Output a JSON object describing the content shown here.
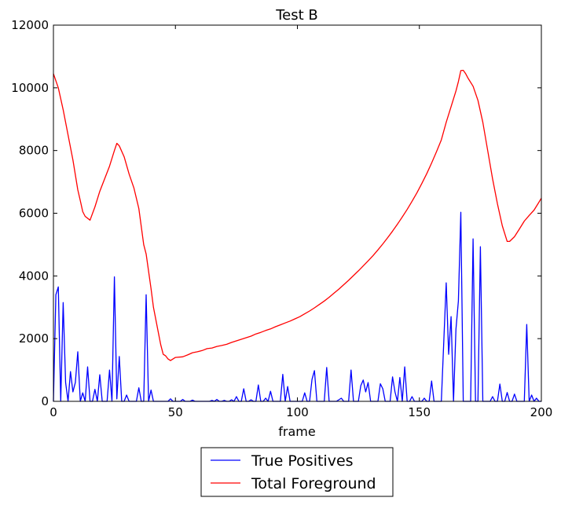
{
  "chart_data": {
    "type": "line",
    "title": "Test B",
    "xlabel": "frame",
    "ylabel": "",
    "xlim": [
      0,
      200
    ],
    "ylim": [
      0,
      12000
    ],
    "xticks": [
      0,
      50,
      100,
      150,
      200
    ],
    "yticks": [
      0,
      2000,
      4000,
      6000,
      8000,
      10000,
      12000
    ],
    "legend_position": "below plot, centered",
    "grid": false,
    "series": [
      {
        "name": "True Positives",
        "color": "#0000ff",
        "points": [
          [
            0,
            0
          ],
          [
            1,
            3400
          ],
          [
            2,
            3650
          ],
          [
            3,
            0
          ],
          [
            4,
            3150
          ],
          [
            5,
            600
          ],
          [
            6,
            0
          ],
          [
            7,
            950
          ],
          [
            8,
            300
          ],
          [
            9,
            600
          ],
          [
            10,
            1580
          ],
          [
            11,
            0
          ],
          [
            12,
            270
          ],
          [
            13,
            0
          ],
          [
            14,
            1100
          ],
          [
            15,
            0
          ],
          [
            16,
            0
          ],
          [
            17,
            380
          ],
          [
            18,
            0
          ],
          [
            19,
            850
          ],
          [
            20,
            0
          ],
          [
            21,
            0
          ],
          [
            22,
            0
          ],
          [
            23,
            1000
          ],
          [
            24,
            0
          ],
          [
            25,
            3970
          ],
          [
            26,
            80
          ],
          [
            27,
            1430
          ],
          [
            28,
            0
          ],
          [
            29,
            0
          ],
          [
            30,
            200
          ],
          [
            31,
            0
          ],
          [
            32,
            0
          ],
          [
            33,
            0
          ],
          [
            34,
            0
          ],
          [
            35,
            430
          ],
          [
            36,
            0
          ],
          [
            37,
            0
          ],
          [
            38,
            3400
          ],
          [
            39,
            0
          ],
          [
            40,
            360
          ],
          [
            41,
            0
          ],
          [
            42,
            0
          ],
          [
            43,
            0
          ],
          [
            44,
            0
          ],
          [
            45,
            0
          ],
          [
            46,
            0
          ],
          [
            47,
            0
          ],
          [
            48,
            80
          ],
          [
            49,
            0
          ],
          [
            50,
            0
          ],
          [
            51,
            0
          ],
          [
            52,
            0
          ],
          [
            53,
            60
          ],
          [
            54,
            0
          ],
          [
            55,
            0
          ],
          [
            56,
            0
          ],
          [
            57,
            40
          ],
          [
            58,
            0
          ],
          [
            59,
            0
          ],
          [
            60,
            0
          ],
          [
            61,
            0
          ],
          [
            62,
            0
          ],
          [
            63,
            0
          ],
          [
            64,
            0
          ],
          [
            65,
            30
          ],
          [
            66,
            0
          ],
          [
            67,
            60
          ],
          [
            68,
            0
          ],
          [
            69,
            0
          ],
          [
            70,
            30
          ],
          [
            71,
            0
          ],
          [
            72,
            0
          ],
          [
            73,
            50
          ],
          [
            74,
            0
          ],
          [
            75,
            150
          ],
          [
            76,
            0
          ],
          [
            77,
            0
          ],
          [
            78,
            400
          ],
          [
            79,
            0
          ],
          [
            80,
            0
          ],
          [
            81,
            50
          ],
          [
            82,
            0
          ],
          [
            83,
            0
          ],
          [
            84,
            520
          ],
          [
            85,
            0
          ],
          [
            86,
            0
          ],
          [
            87,
            100
          ],
          [
            88,
            0
          ],
          [
            89,
            320
          ],
          [
            90,
            0
          ],
          [
            91,
            0
          ],
          [
            92,
            0
          ],
          [
            93,
            0
          ],
          [
            94,
            860
          ],
          [
            95,
            0
          ],
          [
            96,
            470
          ],
          [
            97,
            0
          ],
          [
            98,
            0
          ],
          [
            99,
            0
          ],
          [
            100,
            0
          ],
          [
            101,
            0
          ],
          [
            102,
            0
          ],
          [
            103,
            270
          ],
          [
            104,
            0
          ],
          [
            105,
            0
          ],
          [
            106,
            700
          ],
          [
            107,
            980
          ],
          [
            108,
            0
          ],
          [
            109,
            0
          ],
          [
            110,
            0
          ],
          [
            111,
            0
          ],
          [
            112,
            1080
          ],
          [
            113,
            0
          ],
          [
            114,
            0
          ],
          [
            115,
            0
          ],
          [
            116,
            0
          ],
          [
            117,
            50
          ],
          [
            118,
            100
          ],
          [
            119,
            0
          ],
          [
            120,
            0
          ],
          [
            121,
            0
          ],
          [
            122,
            1000
          ],
          [
            123,
            0
          ],
          [
            124,
            0
          ],
          [
            125,
            0
          ],
          [
            126,
            500
          ],
          [
            127,
            680
          ],
          [
            128,
            300
          ],
          [
            129,
            600
          ],
          [
            130,
            0
          ],
          [
            131,
            0
          ],
          [
            132,
            0
          ],
          [
            133,
            0
          ],
          [
            134,
            560
          ],
          [
            135,
            400
          ],
          [
            136,
            0
          ],
          [
            137,
            0
          ],
          [
            138,
            0
          ],
          [
            139,
            780
          ],
          [
            140,
            300
          ],
          [
            141,
            0
          ],
          [
            142,
            760
          ],
          [
            143,
            0
          ],
          [
            144,
            1100
          ],
          [
            145,
            0
          ],
          [
            146,
            0
          ],
          [
            147,
            150
          ],
          [
            148,
            0
          ],
          [
            149,
            0
          ],
          [
            150,
            0
          ],
          [
            151,
            0
          ],
          [
            152,
            100
          ],
          [
            153,
            0
          ],
          [
            154,
            0
          ],
          [
            155,
            650
          ],
          [
            156,
            0
          ],
          [
            157,
            0
          ],
          [
            158,
            0
          ],
          [
            159,
            0
          ],
          [
            160,
            1900
          ],
          [
            161,
            3780
          ],
          [
            162,
            1500
          ],
          [
            163,
            2700
          ],
          [
            164,
            0
          ],
          [
            165,
            2300
          ],
          [
            166,
            3200
          ],
          [
            167,
            6030
          ],
          [
            168,
            0
          ],
          [
            169,
            0
          ],
          [
            170,
            0
          ],
          [
            171,
            0
          ],
          [
            172,
            5180
          ],
          [
            173,
            0
          ],
          [
            174,
            0
          ],
          [
            175,
            4930
          ],
          [
            176,
            0
          ],
          [
            177,
            0
          ],
          [
            178,
            0
          ],
          [
            179,
            0
          ],
          [
            180,
            150
          ],
          [
            181,
            0
          ],
          [
            182,
            0
          ],
          [
            183,
            550
          ],
          [
            184,
            0
          ],
          [
            185,
            0
          ],
          [
            186,
            280
          ],
          [
            187,
            0
          ],
          [
            188,
            0
          ],
          [
            189,
            230
          ],
          [
            190,
            0
          ],
          [
            191,
            0
          ],
          [
            192,
            0
          ],
          [
            193,
            0
          ],
          [
            194,
            2450
          ],
          [
            195,
            0
          ],
          [
            196,
            200
          ],
          [
            197,
            0
          ],
          [
            198,
            100
          ],
          [
            199,
            0
          ],
          [
            200,
            0
          ]
        ]
      },
      {
        "name": "Total Foreground",
        "color": "#ff0000",
        "points": [
          [
            0,
            10450
          ],
          [
            2,
            10000
          ],
          [
            4,
            9300
          ],
          [
            6,
            8500
          ],
          [
            8,
            7700
          ],
          [
            10,
            6750
          ],
          [
            11,
            6400
          ],
          [
            12,
            6050
          ],
          [
            13,
            5900
          ],
          [
            15,
            5780
          ],
          [
            17,
            6200
          ],
          [
            19,
            6700
          ],
          [
            21,
            7100
          ],
          [
            23,
            7500
          ],
          [
            25,
            8000
          ],
          [
            26,
            8230
          ],
          [
            27,
            8150
          ],
          [
            29,
            7800
          ],
          [
            31,
            7250
          ],
          [
            33,
            6800
          ],
          [
            35,
            6150
          ],
          [
            37,
            5000
          ],
          [
            38,
            4700
          ],
          [
            40,
            3600
          ],
          [
            41,
            3000
          ],
          [
            43,
            2200
          ],
          [
            44,
            1800
          ],
          [
            45,
            1500
          ],
          [
            46,
            1450
          ],
          [
            47,
            1350
          ],
          [
            48,
            1300
          ],
          [
            50,
            1400
          ],
          [
            53,
            1420
          ],
          [
            55,
            1480
          ],
          [
            57,
            1550
          ],
          [
            59,
            1580
          ],
          [
            61,
            1620
          ],
          [
            63,
            1680
          ],
          [
            65,
            1700
          ],
          [
            67,
            1750
          ],
          [
            69,
            1780
          ],
          [
            71,
            1820
          ],
          [
            73,
            1880
          ],
          [
            75,
            1930
          ],
          [
            77,
            1980
          ],
          [
            79,
            2030
          ],
          [
            81,
            2080
          ],
          [
            83,
            2150
          ],
          [
            85,
            2200
          ],
          [
            87,
            2260
          ],
          [
            89,
            2310
          ],
          [
            91,
            2380
          ],
          [
            93,
            2440
          ],
          [
            95,
            2500
          ],
          [
            97,
            2560
          ],
          [
            99,
            2630
          ],
          [
            101,
            2700
          ],
          [
            103,
            2790
          ],
          [
            105,
            2880
          ],
          [
            107,
            2980
          ],
          [
            109,
            3090
          ],
          [
            111,
            3200
          ],
          [
            113,
            3320
          ],
          [
            115,
            3450
          ],
          [
            117,
            3580
          ],
          [
            119,
            3720
          ],
          [
            121,
            3860
          ],
          [
            123,
            4010
          ],
          [
            125,
            4160
          ],
          [
            127,
            4320
          ],
          [
            129,
            4480
          ],
          [
            131,
            4650
          ],
          [
            133,
            4830
          ],
          [
            135,
            5020
          ],
          [
            137,
            5220
          ],
          [
            139,
            5430
          ],
          [
            141,
            5650
          ],
          [
            143,
            5880
          ],
          [
            145,
            6120
          ],
          [
            147,
            6380
          ],
          [
            149,
            6650
          ],
          [
            151,
            6950
          ],
          [
            153,
            7260
          ],
          [
            155,
            7600
          ],
          [
            157,
            7960
          ],
          [
            159,
            8340
          ],
          [
            161,
            8900
          ],
          [
            163,
            9400
          ],
          [
            165,
            9900
          ],
          [
            166,
            10200
          ],
          [
            167,
            10550
          ],
          [
            168,
            10560
          ],
          [
            169,
            10450
          ],
          [
            170,
            10300
          ],
          [
            172,
            10050
          ],
          [
            174,
            9600
          ],
          [
            176,
            8900
          ],
          [
            178,
            8000
          ],
          [
            180,
            7100
          ],
          [
            182,
            6300
          ],
          [
            184,
            5600
          ],
          [
            185,
            5350
          ],
          [
            186,
            5100
          ],
          [
            187,
            5100
          ],
          [
            189,
            5250
          ],
          [
            191,
            5500
          ],
          [
            193,
            5750
          ],
          [
            195,
            5930
          ],
          [
            197,
            6100
          ],
          [
            199,
            6350
          ],
          [
            200,
            6480
          ]
        ]
      }
    ]
  }
}
